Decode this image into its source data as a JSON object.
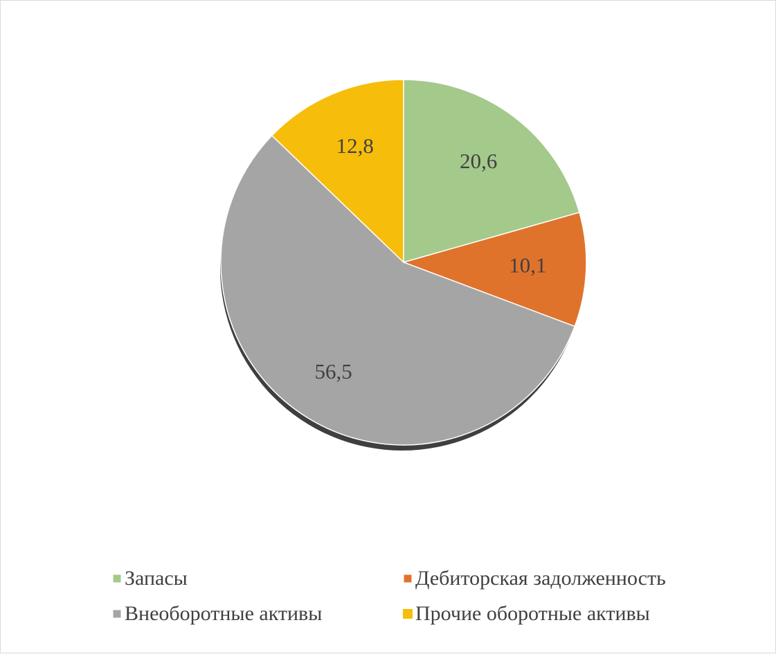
{
  "chart_data": {
    "type": "pie",
    "title": "",
    "slices": [
      {
        "label": "Запасы",
        "value": 20.6,
        "display": "20,6",
        "color": "#a3c98b"
      },
      {
        "label": "Дебиторская задолженность",
        "value": 10.1,
        "display": "10,1",
        "color": "#e0732c"
      },
      {
        "label": "Внеоборотные активы",
        "value": 56.5,
        "display": "56,5",
        "color": "#a5a5a5"
      },
      {
        "label": "Прочие оборотные активы",
        "value": 12.8,
        "display": "12,8",
        "color": "#f7bd0b"
      }
    ],
    "start_angle": "12 o'clock",
    "direction": "clockwise",
    "legend_position": "bottom"
  }
}
